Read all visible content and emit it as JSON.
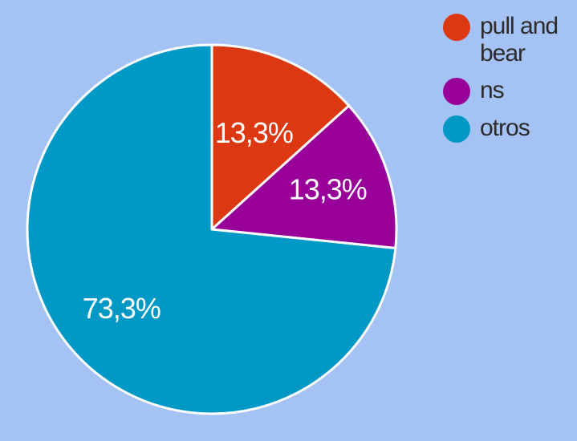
{
  "chart_data": {
    "type": "pie",
    "title": "",
    "categories": [
      "pull and bear",
      "ns",
      "otros"
    ],
    "values": [
      13.3,
      13.3,
      73.3
    ],
    "data_labels": [
      "13,3%",
      "13,3%",
      "73,3%"
    ],
    "colors": [
      "#dc3912",
      "#990099",
      "#0099c6"
    ],
    "legend_position": "right-top",
    "start_angle_degrees": 0,
    "direction": "clockwise"
  }
}
